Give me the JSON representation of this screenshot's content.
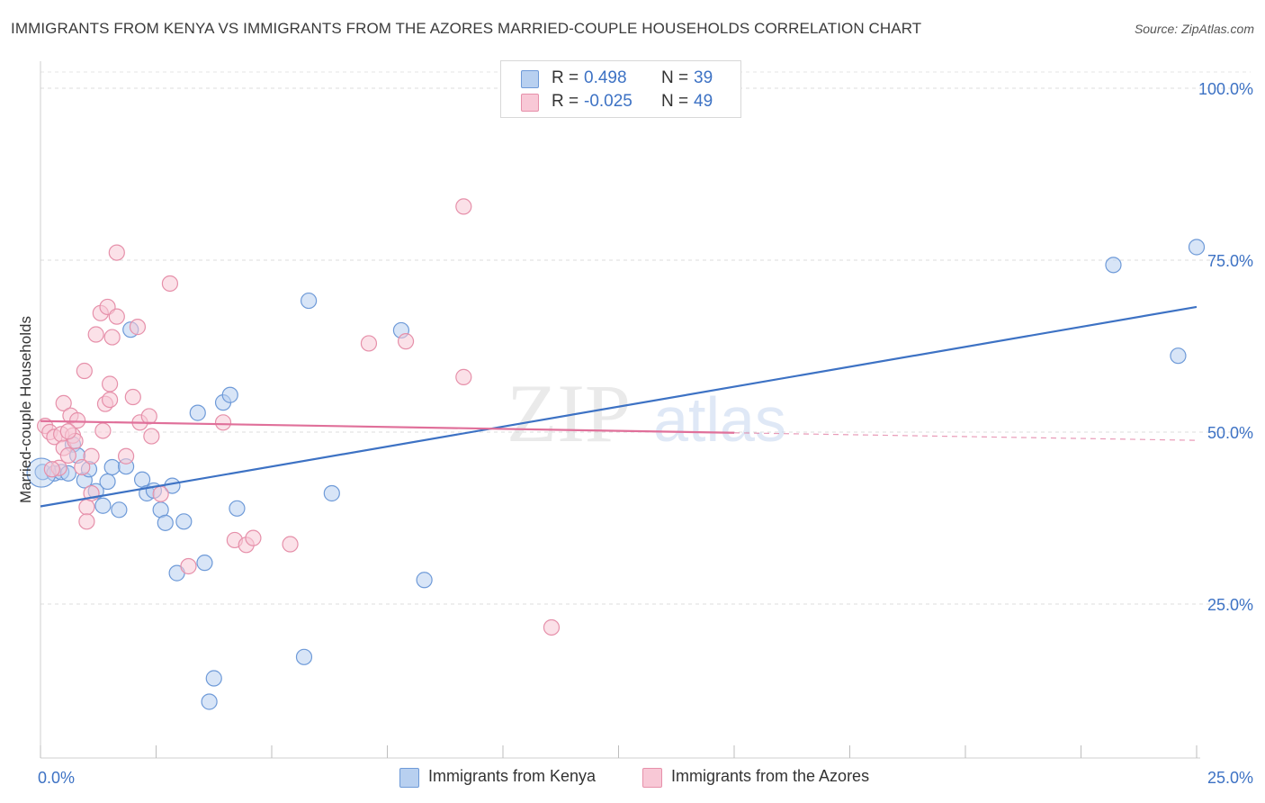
{
  "title": "IMMIGRANTS FROM KENYA VS IMMIGRANTS FROM THE AZORES MARRIED-COUPLE HOUSEHOLDS CORRELATION CHART",
  "source": "Source: ZipAtlas.com",
  "watermark": {
    "zip": "ZIP",
    "atlas": "atlas"
  },
  "legend": {
    "r_label": "R =",
    "n_label": "N =",
    "rows": [
      {
        "r": "0.498",
        "n": "39",
        "fill": "#b8d0f0",
        "stroke": "#6e9ad8"
      },
      {
        "r": "-0.025",
        "n": "49",
        "fill": "#f8c8d6",
        "stroke": "#e690aa"
      }
    ]
  },
  "chart_data": {
    "type": "scatter",
    "title": "IMMIGRANTS FROM KENYA VS IMMIGRANTS FROM THE AZORES MARRIED-COUPLE HOUSEHOLDS CORRELATION CHART",
    "xlabel": "",
    "ylabel": "Married-couple Households",
    "xlim": [
      0,
      25
    ],
    "ylim": [
      5,
      103
    ],
    "x_tick_labels": [
      {
        "value": 0,
        "label": "0.0%"
      },
      {
        "value": 25,
        "label": "25.0%"
      }
    ],
    "y_tick_labels": [
      {
        "value": 100,
        "label": "100.0%"
      },
      {
        "value": 75,
        "label": "75.0%"
      },
      {
        "value": 50,
        "label": "50.0%"
      },
      {
        "value": 25,
        "label": "25.0%"
      }
    ],
    "grid": "horizontal dashed",
    "legend_position": "top-center",
    "series": [
      {
        "name": "Immigrants from Kenya",
        "color": "#3d72c4",
        "fill": "#b8d0f0",
        "trend": {
          "x0": 0,
          "y0": 39.2,
          "x1": 25,
          "y1": 68.2,
          "dashed_from": null
        },
        "points": [
          [
            0.05,
            44.2
          ],
          [
            0.3,
            44.0
          ],
          [
            0.45,
            44.2
          ],
          [
            0.6,
            44.0
          ],
          [
            0.7,
            48.2
          ],
          [
            0.8,
            46.6
          ],
          [
            0.95,
            43.0
          ],
          [
            1.05,
            44.6
          ],
          [
            1.2,
            41.4
          ],
          [
            1.35,
            39.3
          ],
          [
            1.45,
            42.8
          ],
          [
            1.55,
            44.9
          ],
          [
            1.7,
            38.7
          ],
          [
            1.85,
            45.0
          ],
          [
            1.95,
            64.9
          ],
          [
            2.2,
            43.1
          ],
          [
            2.3,
            41.1
          ],
          [
            2.45,
            41.5
          ],
          [
            2.6,
            38.7
          ],
          [
            2.7,
            36.8
          ],
          [
            2.85,
            42.2
          ],
          [
            2.95,
            29.5
          ],
          [
            3.1,
            37.0
          ],
          [
            3.4,
            52.8
          ],
          [
            3.55,
            31.0
          ],
          [
            3.65,
            10.8
          ],
          [
            3.75,
            14.2
          ],
          [
            3.95,
            54.3
          ],
          [
            4.1,
            55.4
          ],
          [
            4.25,
            38.9
          ],
          [
            5.7,
            17.3
          ],
          [
            5.8,
            69.1
          ],
          [
            6.3,
            41.1
          ],
          [
            7.8,
            64.8
          ],
          [
            8.3,
            28.5
          ],
          [
            23.2,
            74.3
          ],
          [
            24.6,
            61.1
          ],
          [
            25.0,
            76.9
          ],
          [
            0.02,
            44.1
          ]
        ]
      },
      {
        "name": "Immigrants from the Azores",
        "color": "#e0709a",
        "fill": "#f8c8d6",
        "trend": {
          "x0": 0,
          "y0": 51.6,
          "x1": 15,
          "y1": 49.9,
          "dashed_from": 15,
          "x_end": 25,
          "y_end": 48.8
        },
        "points": [
          [
            0.1,
            50.9
          ],
          [
            0.2,
            50.0
          ],
          [
            0.3,
            49.3
          ],
          [
            0.4,
            44.8
          ],
          [
            0.45,
            49.7
          ],
          [
            0.5,
            47.7
          ],
          [
            0.5,
            54.2
          ],
          [
            0.6,
            46.6
          ],
          [
            0.65,
            52.4
          ],
          [
            0.7,
            49.5
          ],
          [
            0.75,
            48.7
          ],
          [
            0.8,
            51.7
          ],
          [
            0.9,
            44.9
          ],
          [
            0.95,
            58.9
          ],
          [
            1.0,
            39.1
          ],
          [
            1.0,
            37.0
          ],
          [
            1.1,
            46.5
          ],
          [
            1.1,
            41.1
          ],
          [
            1.2,
            64.2
          ],
          [
            1.3,
            67.3
          ],
          [
            1.35,
            50.2
          ],
          [
            1.4,
            54.1
          ],
          [
            1.45,
            68.2
          ],
          [
            1.5,
            57.0
          ],
          [
            1.5,
            54.7
          ],
          [
            1.55,
            63.8
          ],
          [
            1.65,
            66.8
          ],
          [
            1.65,
            76.1
          ],
          [
            1.85,
            46.5
          ],
          [
            2.0,
            55.1
          ],
          [
            2.1,
            65.3
          ],
          [
            2.15,
            51.4
          ],
          [
            2.35,
            52.3
          ],
          [
            2.4,
            49.4
          ],
          [
            2.6,
            41.0
          ],
          [
            2.8,
            71.6
          ],
          [
            3.2,
            30.5
          ],
          [
            3.95,
            51.4
          ],
          [
            4.2,
            34.3
          ],
          [
            4.45,
            33.6
          ],
          [
            4.6,
            34.6
          ],
          [
            5.4,
            33.7
          ],
          [
            7.1,
            62.9
          ],
          [
            7.9,
            63.2
          ],
          [
            9.15,
            82.8
          ],
          [
            9.15,
            58.0
          ],
          [
            11.05,
            21.6
          ],
          [
            0.25,
            44.6
          ],
          [
            0.6,
            50.1
          ]
        ]
      }
    ]
  }
}
